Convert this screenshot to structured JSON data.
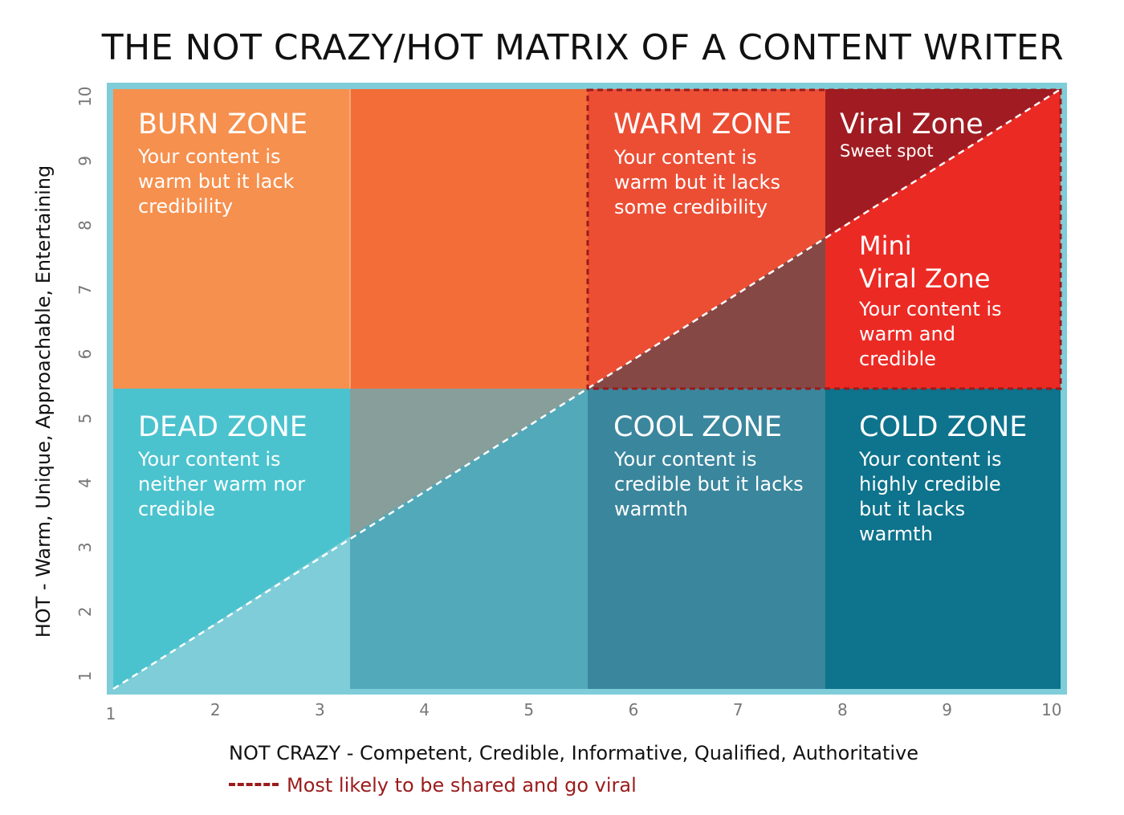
{
  "title": "THE NOT CRAZY/HOT MATRIX OF A CONTENT WRITER",
  "x_axis": {
    "label_strong": "NOT CRAZY",
    "label_rest": " - Competent, Credible, Informative, Qualified, Authoritative",
    "ticks": [
      "1",
      "2",
      "3",
      "4",
      "5",
      "6",
      "7",
      "8",
      "9",
      "10"
    ]
  },
  "y_axis": {
    "label": "HOT - Warm, Unique, Approachable, Entertaining",
    "ticks": [
      "1",
      "2",
      "3",
      "4",
      "5",
      "6",
      "7",
      "8",
      "9",
      "10"
    ]
  },
  "legend": {
    "label": "Most likely to be shared and go viral",
    "color": "#9b1b1b"
  },
  "zones": [
    {
      "id": "burn",
      "title": "BURN ZONE",
      "lines": [
        "Your content is",
        "warm but it lack",
        "credibility"
      ]
    },
    {
      "id": "warm",
      "title": "WARM ZONE",
      "lines": [
        "Your content is",
        "warm but it lacks",
        "some credibility"
      ]
    },
    {
      "id": "viral",
      "title": "Viral Zone",
      "lines": [
        "Sweet spot"
      ]
    },
    {
      "id": "mini-viral",
      "title_lines": [
        "Mini",
        "Viral Zone"
      ],
      "lines": [
        "Your content is",
        "warm and",
        "credible"
      ]
    },
    {
      "id": "dead",
      "title": "DEAD ZONE",
      "lines": [
        "Your content is",
        "neither warm nor",
        "credible"
      ]
    },
    {
      "id": "cool",
      "title": "COOL ZONE",
      "lines": [
        "Your content is",
        "credible but it lacks",
        "warmth"
      ]
    },
    {
      "id": "cold",
      "title": "COLD ZONE",
      "lines": [
        "Your content is",
        "highly credible",
        "but it lacks",
        "warmth"
      ]
    }
  ],
  "colors": {
    "frame": "#7fcdd8",
    "burn": "#f6904e",
    "mid_top": "#f36d38",
    "warm": "#ec4e34",
    "viral": "#a01c22",
    "mini_viral": "#ec2a24",
    "dead": "#4bc3ce",
    "dead_lower": "#7fcdd8",
    "mid_bottom_upper": "#879e9a",
    "mid_bottom_lower": "#52a9ba",
    "cool": "#3a869d",
    "cool_upper": "#864845",
    "cold": "#0e738c",
    "dashed_border": "#9b1b1b"
  }
}
